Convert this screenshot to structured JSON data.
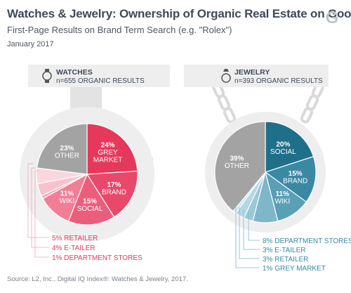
{
  "header": {
    "title": "Watches & Jewelry: Ownership of Organic Real Estate on Google",
    "subtitle": "First-Page Results on Brand Term Search (e.g. \"Rolex\")",
    "date": "January 2017",
    "logo_letter": "G"
  },
  "source": "Source: L2, Inc., Digital IQ Index®: Watches & Jewelry, 2017.",
  "colors": {
    "gray_panel": "#eeeeee",
    "dark_gray": "#a3a3a3",
    "watches_dark": "#e5385b",
    "watches_mid": "#ec5d7b",
    "watches_light": "#f08ba1",
    "watches_pale": "#f6b8c6",
    "jewelry_dark": "#1f6f8a",
    "jewelry_mid": "#3a88a3",
    "jewelry_light": "#6aaec4",
    "jewelry_pale": "#a6d3e1"
  },
  "chart_data": [
    {
      "type": "pie",
      "title": "WATCHES",
      "subtitle": "n=655 ORGANIC RESULTS",
      "icon": "watch-icon",
      "slices": [
        {
          "label": "GREY MARKET",
          "value": 24,
          "percent": "24%",
          "color": "#e5385b"
        },
        {
          "label": "BRAND",
          "value": 17,
          "percent": "17%",
          "color": "#e8486a"
        },
        {
          "label": "SOCIAL",
          "value": 15,
          "percent": "15%",
          "color": "#ec5d7b"
        },
        {
          "label": "WIKI",
          "value": 11,
          "percent": "11%",
          "color": "#f07e96"
        },
        {
          "label": "DEPARTMENT STORES",
          "value": 1,
          "percent": "1%",
          "color": "#f4a9b9"
        },
        {
          "label": "E-TAILER",
          "value": 4,
          "percent": "4%",
          "color": "#f7c2ce"
        },
        {
          "label": "RETAILER",
          "value": 5,
          "percent": "5%",
          "color": "#fad7df"
        },
        {
          "label": "OTHER",
          "value": 23,
          "percent": "23%",
          "color": "#a3a3a3"
        }
      ],
      "callouts": [
        {
          "text": "5% RETAILER",
          "color": "#e5385b"
        },
        {
          "text": "4% E-TAILER",
          "color": "#e5385b"
        },
        {
          "text": "1% DEPARTMENT STORES",
          "color": "#e5385b"
        }
      ]
    },
    {
      "type": "pie",
      "title": "JEWELRY",
      "subtitle": "n=393 ORGANIC RESULTS",
      "icon": "ring-icon",
      "slices": [
        {
          "label": "SOCIAL",
          "value": 20,
          "percent": "20%",
          "color": "#1f6f8a"
        },
        {
          "label": "BRAND",
          "value": 15,
          "percent": "15%",
          "color": "#3a88a3"
        },
        {
          "label": "WIKI",
          "value": 11,
          "percent": "11%",
          "color": "#5a9fb6"
        },
        {
          "label": "DEPARTMENT STORES",
          "value": 8,
          "percent": "8%",
          "color": "#7fb7ca"
        },
        {
          "label": "E-TAILER",
          "value": 3,
          "percent": "3%",
          "color": "#9ac8d7"
        },
        {
          "label": "RETAILER",
          "value": 3,
          "percent": "3%",
          "color": "#b3d7e3"
        },
        {
          "label": "GREY MARKET",
          "value": 1,
          "percent": "1%",
          "color": "#cce6ee"
        },
        {
          "label": "OTHER",
          "value": 39,
          "percent": "39%",
          "color": "#a3a3a3"
        }
      ],
      "callouts": [
        {
          "text": "8% DEPARTMENT STORES",
          "color": "#3a88a3"
        },
        {
          "text": "3% E-TAILER",
          "color": "#3a88a3"
        },
        {
          "text": "3% RETAILER",
          "color": "#3a88a3"
        },
        {
          "text": "1% GREY MARKET",
          "color": "#3a88a3"
        }
      ]
    }
  ]
}
